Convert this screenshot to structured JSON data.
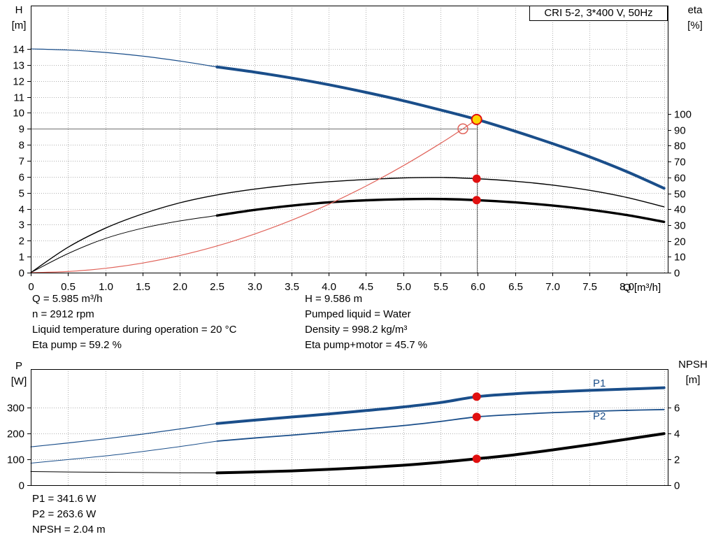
{
  "title_box": {
    "text": "CRI 5-2, 3*400 V, 50Hz"
  },
  "axis_corner_labels": {
    "top_left": [
      "H",
      "[m]"
    ],
    "top_right": [
      "eta",
      "[%]"
    ],
    "bottom_left": [
      "P",
      "[W]"
    ],
    "bottom_right": [
      "NPSH",
      "[m]"
    ]
  },
  "x_axis_label": "Q [m³/h]",
  "curve_labels": {
    "p1": "P1",
    "p2": "P2"
  },
  "info_top_left": [
    "Q = 5.985 m³/h",
    "n = 2912 rpm",
    "Liquid temperature during operation = 20 °C",
    "Eta pump = 59.2 %"
  ],
  "info_top_right": [
    "H = 9.586 m",
    "Pumped liquid = Water",
    "Density = 998.2 kg/m³",
    "Eta pump+motor = 45.7 %"
  ],
  "info_bottom": [
    "P1 = 341.6 W",
    "P2 = 263.6 W",
    "NPSH = 2.04 m"
  ],
  "colors": {
    "curve_blue": "#1a4e8a",
    "curve_black": "#000000",
    "curve_red": "#e0635a",
    "dot_red": "#e01010",
    "dot_yellow": "#ffd400",
    "grid": "#b0b0b0",
    "duty_line": "#707070",
    "axis": "#000000"
  },
  "chart_data": [
    {
      "id": "qh",
      "type": "line",
      "title": "CRI 5-2, 3*400 V, 50Hz",
      "x": {
        "label": "Q [m³/h]",
        "min": 0,
        "max": 8.55,
        "grid_step": 0.5,
        "labels": [
          "0",
          "0.5",
          "1.0",
          "1.5",
          "2.0",
          "2.5",
          "3.0",
          "3.5",
          "4.0",
          "4.5",
          "5.0",
          "5.5",
          "6.0",
          "6.5",
          "7.0",
          "7.5",
          "8.0"
        ]
      },
      "y_left": {
        "label": "H [m]",
        "ticks": [
          0,
          1,
          2,
          3,
          4,
          5,
          6,
          7,
          8,
          9,
          10,
          11,
          12,
          13,
          14
        ],
        "display_max": 16.71
      },
      "y_right": {
        "label": "eta [%]",
        "ticks": [
          0,
          10,
          20,
          30,
          40,
          50,
          60,
          70,
          80,
          90,
          100
        ],
        "display_max": 168.3
      },
      "duty_lines": [
        {
          "orient": "h",
          "value": 9.0,
          "from": 0,
          "to": 5.985,
          "axis": "left"
        },
        {
          "orient": "v",
          "value": 5.985,
          "from": 0,
          "to": 9.586,
          "axis": "left"
        }
      ],
      "series": [
        {
          "name": "hq-curve-lead",
          "axis": "left",
          "color": "#1a4e8a",
          "width": 1.2,
          "points": [
            [
              0,
              14.0
            ],
            [
              0.5,
              13.93
            ],
            [
              1,
              13.78
            ],
            [
              1.5,
              13.55
            ],
            [
              2,
              13.24
            ],
            [
              2.5,
              12.87
            ]
          ]
        },
        {
          "name": "hq-curve-main",
          "axis": "left",
          "color": "#1a4e8a",
          "width": 4,
          "points": [
            [
              2.5,
              12.87
            ],
            [
              3,
              12.55
            ],
            [
              3.5,
              12.18
            ],
            [
              4,
              11.76
            ],
            [
              4.5,
              11.28
            ],
            [
              5,
              10.76
            ],
            [
              5.5,
              10.18
            ],
            [
              5.985,
              9.586
            ],
            [
              6.5,
              8.85
            ],
            [
              7,
              8.08
            ],
            [
              7.5,
              7.25
            ],
            [
              8,
              6.32
            ],
            [
              8.5,
              5.28
            ]
          ]
        },
        {
          "name": "eta-pump-curve",
          "axis": "right",
          "color": "#000000",
          "width": 1.4,
          "points": [
            [
              0,
              0
            ],
            [
              0.5,
              16
            ],
            [
              1,
              28
            ],
            [
              1.5,
              37
            ],
            [
              2,
              44
            ],
            [
              2.5,
              49
            ],
            [
              3,
              52.6
            ],
            [
              3.5,
              55.3
            ],
            [
              4,
              57.3
            ],
            [
              4.5,
              58.7
            ],
            [
              5,
              59.7
            ],
            [
              5.5,
              60
            ],
            [
              5.985,
              59.2
            ],
            [
              6.5,
              57.6
            ],
            [
              7,
              55.2
            ],
            [
              7.5,
              51.9
            ],
            [
              8,
              47.4
            ],
            [
              8.5,
              41.5
            ]
          ]
        },
        {
          "name": "eta-pump-motor-lead",
          "axis": "right",
          "color": "#000000",
          "width": 1,
          "points": [
            [
              0,
              0
            ],
            [
              0.5,
              12
            ],
            [
              1,
              21.5
            ],
            [
              1.5,
              28
            ],
            [
              2,
              32.6
            ],
            [
              2.5,
              36
            ]
          ]
        },
        {
          "name": "eta-pump-motor-curve",
          "axis": "right",
          "color": "#000000",
          "width": 3.4,
          "points": [
            [
              2.5,
              36
            ],
            [
              3,
              39.5
            ],
            [
              3.5,
              42.2
            ],
            [
              4,
              44.3
            ],
            [
              4.5,
              45.6
            ],
            [
              5,
              46.3
            ],
            [
              5.5,
              46.4
            ],
            [
              5.985,
              45.7
            ],
            [
              6.5,
              44.3
            ],
            [
              7,
              42.3
            ],
            [
              7.5,
              39.7
            ],
            [
              8,
              36.3
            ],
            [
              8.5,
              32
            ]
          ]
        },
        {
          "name": "system-curve",
          "axis": "left",
          "color": "#e0635a",
          "width": 1.2,
          "points": [
            [
              0,
              0
            ],
            [
              0.5,
              0.07
            ],
            [
              1,
              0.27
            ],
            [
              1.5,
              0.6
            ],
            [
              2,
              1.07
            ],
            [
              2.5,
              1.67
            ],
            [
              3,
              2.41
            ],
            [
              3.5,
              3.28
            ],
            [
              4,
              4.28
            ],
            [
              4.5,
              5.42
            ],
            [
              5,
              6.69
            ],
            [
              5.5,
              8.09
            ],
            [
              5.8,
              9.0
            ],
            [
              5.985,
              9.586
            ]
          ]
        }
      ],
      "markers": [
        {
          "name": "requested-duty-marker",
          "x": 5.8,
          "y": 9.0,
          "axis": "left",
          "style": "requested"
        },
        {
          "name": "operating-point-marker",
          "x": 5.985,
          "y": 9.586,
          "axis": "left",
          "style": "operating"
        },
        {
          "name": "eta-pump-marker",
          "x": 5.985,
          "y": 59.2,
          "axis": "right",
          "style": "dot"
        },
        {
          "name": "eta-pump-motor-marker",
          "x": 5.985,
          "y": 45.7,
          "axis": "right",
          "style": "dot"
        }
      ]
    },
    {
      "id": "power",
      "type": "line",
      "x": {
        "label": "",
        "min": 0,
        "max": 8.55,
        "grid_step": 0.5,
        "labels": []
      },
      "y_left": {
        "label": "P [W]",
        "ticks": [
          0,
          100,
          200,
          300
        ],
        "display_max": 448
      },
      "y_right": {
        "label": "NPSH [m]",
        "ticks": [
          0,
          2,
          4,
          6
        ],
        "display_max": 8.96
      },
      "duty_lines": [],
      "series": [
        {
          "name": "p1-curve-lead",
          "axis": "left",
          "color": "#1a4e8a",
          "width": 1.2,
          "points": [
            [
              0,
              148
            ],
            [
              0.5,
              163
            ],
            [
              1,
              179
            ],
            [
              1.5,
              197
            ],
            [
              2,
              217
            ],
            [
              2.5,
              238
            ]
          ]
        },
        {
          "name": "p1-curve",
          "axis": "left",
          "color": "#1a4e8a",
          "width": 4,
          "points": [
            [
              2.5,
              238
            ],
            [
              3,
              251
            ],
            [
              3.5,
              263
            ],
            [
              4,
              275
            ],
            [
              4.5,
              288
            ],
            [
              5,
              302
            ],
            [
              5.5,
              319
            ],
            [
              5.985,
              341.6
            ],
            [
              6.5,
              353
            ],
            [
              7,
              360
            ],
            [
              7.5,
              366
            ],
            [
              8,
              371
            ],
            [
              8.5,
              376
            ]
          ]
        },
        {
          "name": "p2-curve-lead",
          "axis": "left",
          "color": "#1a4e8a",
          "width": 1,
          "points": [
            [
              0,
              85
            ],
            [
              0.5,
              99
            ],
            [
              1,
              113
            ],
            [
              1.5,
              130
            ],
            [
              2,
              149
            ],
            [
              2.5,
              170
            ]
          ]
        },
        {
          "name": "p2-curve",
          "axis": "left",
          "color": "#1a4e8a",
          "width": 1.8,
          "points": [
            [
              2.5,
              170
            ],
            [
              3,
              182
            ],
            [
              3.5,
              193
            ],
            [
              4,
              205
            ],
            [
              4.5,
              217
            ],
            [
              5,
              230
            ],
            [
              5.5,
              246
            ],
            [
              5.985,
              263.6
            ],
            [
              6.5,
              273
            ],
            [
              7,
              280
            ],
            [
              7.5,
              285
            ],
            [
              8,
              289
            ],
            [
              8.5,
              292
            ]
          ]
        },
        {
          "name": "npsh-curve-lead",
          "axis": "right",
          "color": "#000000",
          "width": 1,
          "points": [
            [
              0,
              1.05
            ],
            [
              0.5,
              1.02
            ],
            [
              1,
              1.0
            ],
            [
              1.5,
              0.98
            ],
            [
              2,
              0.96
            ],
            [
              2.5,
              0.95
            ]
          ]
        },
        {
          "name": "npsh-curve",
          "axis": "right",
          "color": "#000000",
          "width": 4,
          "points": [
            [
              2.5,
              0.95
            ],
            [
              3,
              1.02
            ],
            [
              3.5,
              1.1
            ],
            [
              4,
              1.22
            ],
            [
              4.5,
              1.36
            ],
            [
              5,
              1.54
            ],
            [
              5.5,
              1.77
            ],
            [
              5.985,
              2.04
            ],
            [
              6.5,
              2.35
            ],
            [
              7,
              2.72
            ],
            [
              7.5,
              3.12
            ],
            [
              8,
              3.55
            ],
            [
              8.5,
              3.98
            ]
          ]
        }
      ],
      "markers": [
        {
          "name": "p1-marker",
          "x": 5.985,
          "y": 341.6,
          "axis": "left",
          "style": "dot"
        },
        {
          "name": "p2-marker",
          "x": 5.985,
          "y": 263.6,
          "axis": "left",
          "style": "dot"
        },
        {
          "name": "npsh-marker",
          "x": 5.985,
          "y": 2.04,
          "axis": "right",
          "style": "dot"
        }
      ]
    }
  ]
}
